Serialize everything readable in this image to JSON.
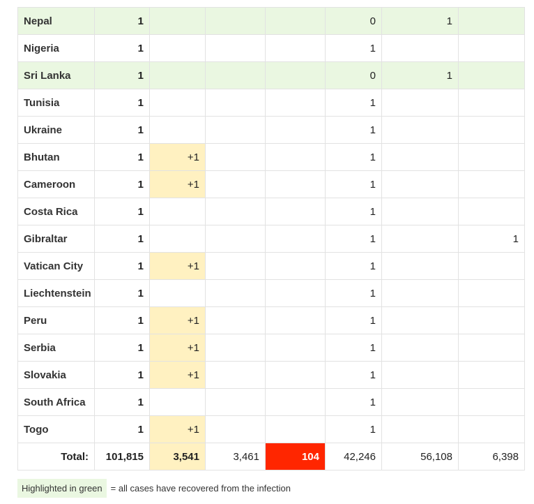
{
  "rows": [
    {
      "country": "Nepal",
      "total": "1",
      "new_cases": "",
      "deaths": "",
      "new_deaths": "",
      "active": "0",
      "recovered": "1",
      "critical": "",
      "recovered_all": true
    },
    {
      "country": "Nigeria",
      "total": "1",
      "new_cases": "",
      "deaths": "",
      "new_deaths": "",
      "active": "1",
      "recovered": "",
      "critical": "",
      "recovered_all": false
    },
    {
      "country": "Sri Lanka",
      "total": "1",
      "new_cases": "",
      "deaths": "",
      "new_deaths": "",
      "active": "0",
      "recovered": "1",
      "critical": "",
      "recovered_all": true
    },
    {
      "country": "Tunisia",
      "total": "1",
      "new_cases": "",
      "deaths": "",
      "new_deaths": "",
      "active": "1",
      "recovered": "",
      "critical": "",
      "recovered_all": false
    },
    {
      "country": "Ukraine",
      "total": "1",
      "new_cases": "",
      "deaths": "",
      "new_deaths": "",
      "active": "1",
      "recovered": "",
      "critical": "",
      "recovered_all": false
    },
    {
      "country": "Bhutan",
      "total": "1",
      "new_cases": "+1",
      "deaths": "",
      "new_deaths": "",
      "active": "1",
      "recovered": "",
      "critical": "",
      "recovered_all": false
    },
    {
      "country": "Cameroon",
      "total": "1",
      "new_cases": "+1",
      "deaths": "",
      "new_deaths": "",
      "active": "1",
      "recovered": "",
      "critical": "",
      "recovered_all": false
    },
    {
      "country": "Costa Rica",
      "total": "1",
      "new_cases": "",
      "deaths": "",
      "new_deaths": "",
      "active": "1",
      "recovered": "",
      "critical": "",
      "recovered_all": false
    },
    {
      "country": "Gibraltar",
      "total": "1",
      "new_cases": "",
      "deaths": "",
      "new_deaths": "",
      "active": "1",
      "recovered": "",
      "critical": "1",
      "recovered_all": false
    },
    {
      "country": "Vatican City",
      "total": "1",
      "new_cases": "+1",
      "deaths": "",
      "new_deaths": "",
      "active": "1",
      "recovered": "",
      "critical": "",
      "recovered_all": false
    },
    {
      "country": "Liechtenstein",
      "total": "1",
      "new_cases": "",
      "deaths": "",
      "new_deaths": "",
      "active": "1",
      "recovered": "",
      "critical": "",
      "recovered_all": false
    },
    {
      "country": "Peru",
      "total": "1",
      "new_cases": "+1",
      "deaths": "",
      "new_deaths": "",
      "active": "1",
      "recovered": "",
      "critical": "",
      "recovered_all": false
    },
    {
      "country": "Serbia",
      "total": "1",
      "new_cases": "+1",
      "deaths": "",
      "new_deaths": "",
      "active": "1",
      "recovered": "",
      "critical": "",
      "recovered_all": false
    },
    {
      "country": "Slovakia",
      "total": "1",
      "new_cases": "+1",
      "deaths": "",
      "new_deaths": "",
      "active": "1",
      "recovered": "",
      "critical": "",
      "recovered_all": false
    },
    {
      "country": "South Africa",
      "total": "1",
      "new_cases": "",
      "deaths": "",
      "new_deaths": "",
      "active": "1",
      "recovered": "",
      "critical": "",
      "recovered_all": false
    },
    {
      "country": "Togo",
      "total": "1",
      "new_cases": "+1",
      "deaths": "",
      "new_deaths": "",
      "active": "1",
      "recovered": "",
      "critical": "",
      "recovered_all": false
    }
  ],
  "totals": {
    "label": "Total:",
    "total": "101,815",
    "new_cases": "3,541",
    "deaths": "3,461",
    "new_deaths": "104",
    "active": "42,246",
    "recovered": "56,108",
    "critical": "6,398"
  },
  "legend": {
    "highlight_label": "Highlighted in green",
    "description": "= all cases have recovered from the infection"
  },
  "colors": {
    "recovered_green": "#eaf7e1",
    "new_cases_yellow": "#fff1c1",
    "new_deaths_red": "#ff2600"
  }
}
